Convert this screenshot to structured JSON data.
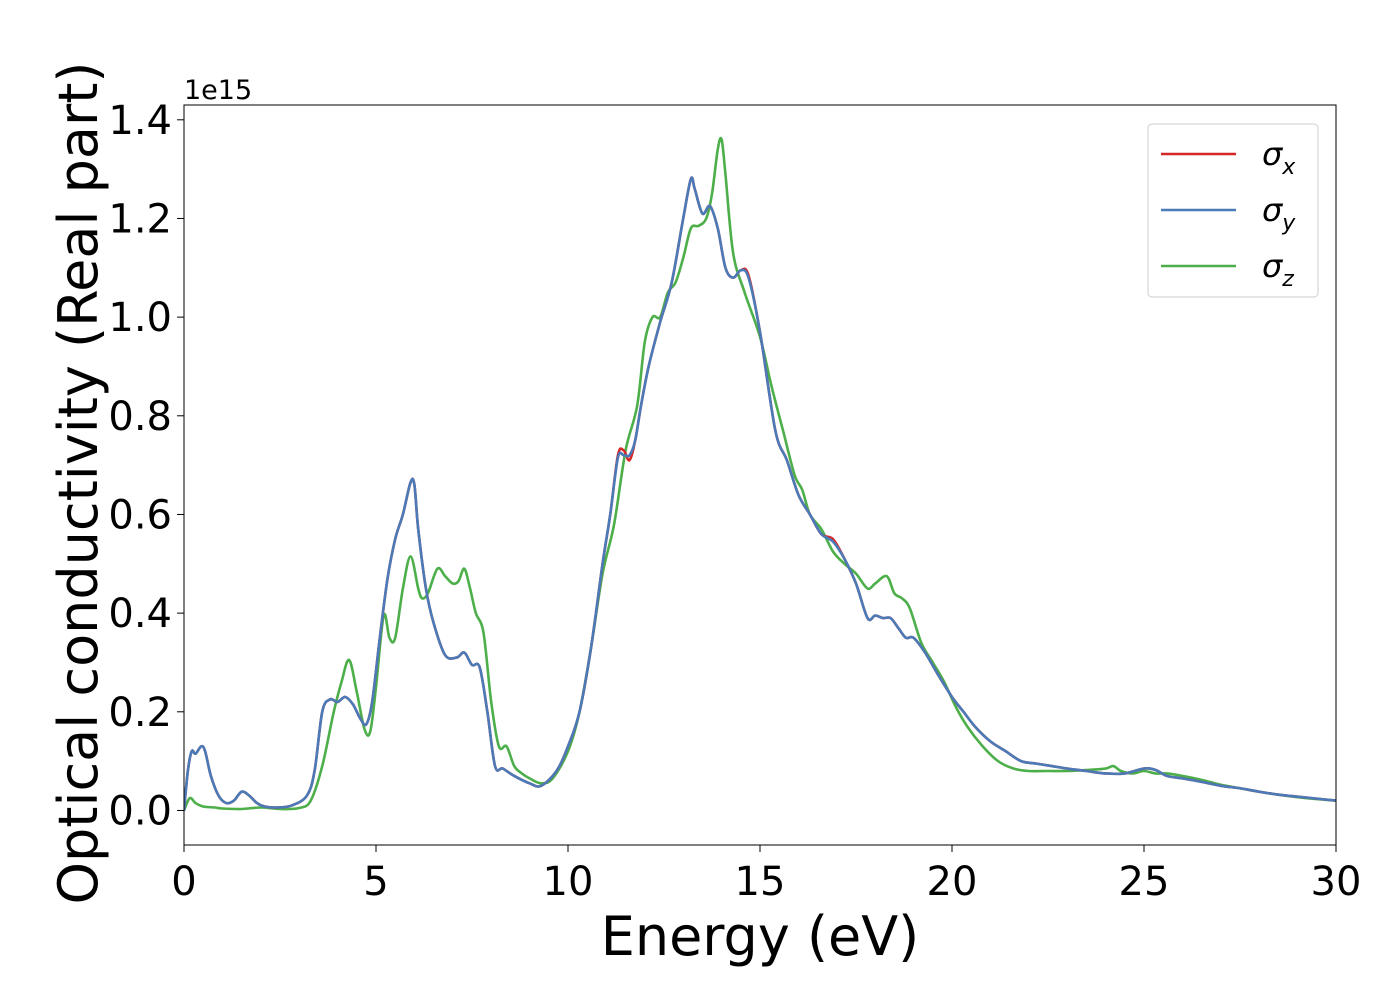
{
  "chart_data": {
    "type": "line",
    "xlabel": "Energy (eV)",
    "ylabel": "Optical conductivity (Real part)",
    "y_offset_label": "1e15",
    "xlim": [
      0,
      30
    ],
    "ylim": [
      -0.07,
      1.43
    ],
    "x_ticks": [
      0,
      5,
      10,
      15,
      20,
      25,
      30
    ],
    "x_tick_labels": [
      "0",
      "5",
      "10",
      "15",
      "20",
      "25",
      "30"
    ],
    "y_ticks": [
      0.0,
      0.2,
      0.4,
      0.6,
      0.8,
      1.0,
      1.2,
      1.4
    ],
    "y_tick_labels": [
      "0.0",
      "0.2",
      "0.4",
      "0.6",
      "0.8",
      "1.0",
      "1.2",
      "1.4"
    ],
    "grid": false,
    "legend_position": "top-right",
    "series": [
      {
        "name": "σx",
        "legend_symbol": "σ",
        "legend_subscript": "x",
        "color": "#d62728",
        "x": [
          0,
          0.1,
          0.2,
          0.3,
          0.45,
          0.55,
          0.7,
          0.9,
          1.1,
          1.3,
          1.5,
          1.7,
          1.9,
          2.1,
          2.4,
          2.8,
          3.2,
          3.4,
          3.6,
          3.8,
          4.0,
          4.2,
          4.4,
          4.6,
          4.75,
          4.9,
          5.1,
          5.3,
          5.5,
          5.7,
          5.9,
          6.0,
          6.1,
          6.3,
          6.5,
          6.8,
          7.1,
          7.3,
          7.5,
          7.7,
          7.9,
          8.1,
          8.3,
          8.6,
          9.0,
          9.3,
          9.7,
          10.0,
          10.3,
          10.6,
          10.9,
          11.1,
          11.3,
          11.45,
          11.6,
          11.75,
          11.9,
          12.1,
          12.4,
          12.7,
          13.0,
          13.2,
          13.3,
          13.5,
          13.7,
          13.9,
          14.1,
          14.3,
          14.5,
          14.7,
          15.0,
          15.4,
          15.7,
          16.0,
          16.3,
          16.6,
          16.9,
          17.2,
          17.5,
          17.8,
          18.0,
          18.2,
          18.4,
          18.6,
          18.8,
          19.0,
          19.3,
          19.6,
          20.0,
          20.3,
          20.6,
          21.0,
          21.4,
          21.8,
          22.2,
          22.6,
          23.0,
          23.5,
          24.0,
          24.5,
          25.0,
          25.3,
          25.6,
          26.0,
          26.5,
          27.0,
          27.5,
          28.0,
          28.5,
          29.0,
          29.5,
          30.0
        ],
        "values": [
          0.0,
          0.08,
          0.12,
          0.115,
          0.13,
          0.12,
          0.07,
          0.03,
          0.015,
          0.02,
          0.038,
          0.03,
          0.015,
          0.008,
          0.006,
          0.01,
          0.03,
          0.08,
          0.2,
          0.225,
          0.22,
          0.23,
          0.215,
          0.185,
          0.175,
          0.22,
          0.35,
          0.47,
          0.55,
          0.6,
          0.665,
          0.66,
          0.57,
          0.45,
          0.38,
          0.315,
          0.31,
          0.32,
          0.295,
          0.29,
          0.2,
          0.09,
          0.085,
          0.07,
          0.055,
          0.05,
          0.08,
          0.13,
          0.2,
          0.33,
          0.5,
          0.6,
          0.72,
          0.73,
          0.71,
          0.75,
          0.82,
          0.9,
          0.99,
          1.07,
          1.2,
          1.28,
          1.26,
          1.21,
          1.225,
          1.18,
          1.1,
          1.08,
          1.095,
          1.085,
          0.97,
          0.77,
          0.71,
          0.64,
          0.6,
          0.56,
          0.55,
          0.51,
          0.46,
          0.39,
          0.395,
          0.39,
          0.39,
          0.37,
          0.35,
          0.35,
          0.32,
          0.28,
          0.23,
          0.2,
          0.17,
          0.14,
          0.12,
          0.1,
          0.095,
          0.09,
          0.085,
          0.08,
          0.075,
          0.075,
          0.085,
          0.082,
          0.07,
          0.065,
          0.058,
          0.05,
          0.045,
          0.038,
          0.032,
          0.028,
          0.024,
          0.02
        ]
      },
      {
        "name": "σy",
        "legend_symbol": "σ",
        "legend_subscript": "y",
        "color": "#4a7ab7",
        "x": [
          0,
          0.1,
          0.2,
          0.3,
          0.45,
          0.55,
          0.7,
          0.9,
          1.1,
          1.3,
          1.5,
          1.7,
          1.9,
          2.1,
          2.4,
          2.8,
          3.2,
          3.4,
          3.6,
          3.8,
          4.0,
          4.2,
          4.4,
          4.6,
          4.75,
          4.9,
          5.1,
          5.3,
          5.5,
          5.7,
          5.9,
          6.0,
          6.1,
          6.3,
          6.5,
          6.8,
          7.1,
          7.3,
          7.5,
          7.7,
          7.9,
          8.1,
          8.3,
          8.6,
          9.0,
          9.3,
          9.7,
          10.0,
          10.3,
          10.6,
          10.9,
          11.1,
          11.3,
          11.45,
          11.6,
          11.75,
          11.9,
          12.1,
          12.4,
          12.7,
          13.0,
          13.2,
          13.3,
          13.5,
          13.7,
          13.9,
          14.1,
          14.3,
          14.5,
          14.7,
          15.0,
          15.4,
          15.7,
          16.0,
          16.3,
          16.6,
          16.9,
          17.2,
          17.5,
          17.8,
          18.0,
          18.2,
          18.4,
          18.6,
          18.8,
          19.0,
          19.3,
          19.6,
          20.0,
          20.3,
          20.6,
          21.0,
          21.4,
          21.8,
          22.2,
          22.6,
          23.0,
          23.5,
          24.0,
          24.5,
          25.0,
          25.3,
          25.6,
          26.0,
          26.5,
          27.0,
          27.5,
          28.0,
          28.5,
          29.0,
          29.5,
          30.0
        ],
        "values": [
          0.0,
          0.08,
          0.12,
          0.115,
          0.13,
          0.12,
          0.07,
          0.03,
          0.015,
          0.02,
          0.038,
          0.03,
          0.015,
          0.008,
          0.006,
          0.01,
          0.03,
          0.08,
          0.2,
          0.225,
          0.22,
          0.23,
          0.215,
          0.185,
          0.175,
          0.22,
          0.35,
          0.47,
          0.55,
          0.6,
          0.665,
          0.66,
          0.57,
          0.45,
          0.38,
          0.315,
          0.31,
          0.32,
          0.295,
          0.29,
          0.2,
          0.09,
          0.085,
          0.07,
          0.055,
          0.05,
          0.08,
          0.13,
          0.2,
          0.33,
          0.5,
          0.6,
          0.715,
          0.72,
          0.72,
          0.75,
          0.82,
          0.9,
          0.99,
          1.07,
          1.2,
          1.28,
          1.26,
          1.21,
          1.225,
          1.18,
          1.1,
          1.08,
          1.095,
          1.08,
          0.97,
          0.77,
          0.71,
          0.64,
          0.6,
          0.56,
          0.545,
          0.51,
          0.46,
          0.39,
          0.395,
          0.39,
          0.39,
          0.37,
          0.35,
          0.35,
          0.32,
          0.28,
          0.23,
          0.2,
          0.17,
          0.14,
          0.12,
          0.1,
          0.095,
          0.09,
          0.085,
          0.08,
          0.075,
          0.075,
          0.085,
          0.082,
          0.07,
          0.065,
          0.058,
          0.05,
          0.045,
          0.038,
          0.032,
          0.028,
          0.024,
          0.02
        ]
      },
      {
        "name": "σz",
        "legend_symbol": "σ",
        "legend_subscript": "z",
        "color": "#4daf4a",
        "x": [
          0,
          0.15,
          0.3,
          0.5,
          0.8,
          1.0,
          1.5,
          2.0,
          2.5,
          3.0,
          3.3,
          3.6,
          3.9,
          4.1,
          4.3,
          4.5,
          4.7,
          4.85,
          5.0,
          5.2,
          5.35,
          5.5,
          5.7,
          5.9,
          6.1,
          6.2,
          6.35,
          6.6,
          6.8,
          7.0,
          7.15,
          7.3,
          7.45,
          7.6,
          7.8,
          8.0,
          8.2,
          8.4,
          8.6,
          8.8,
          9.0,
          9.3,
          9.6,
          10.0,
          10.3,
          10.6,
          10.9,
          11.2,
          11.5,
          11.8,
          12.0,
          12.2,
          12.4,
          12.6,
          12.8,
          13.0,
          13.2,
          13.4,
          13.6,
          13.75,
          13.9,
          14.0,
          14.1,
          14.3,
          14.6,
          15.0,
          15.3,
          15.6,
          15.9,
          16.1,
          16.3,
          16.6,
          16.9,
          17.2,
          17.5,
          17.8,
          18.0,
          18.3,
          18.5,
          18.7,
          18.9,
          19.2,
          19.5,
          19.8,
          20.1,
          20.4,
          20.8,
          21.2,
          21.6,
          22.0,
          22.5,
          23.0,
          23.5,
          24.0,
          24.2,
          24.4,
          24.7,
          25.0,
          25.3,
          25.6,
          26.0,
          26.5,
          27.0,
          27.5,
          28.0,
          28.5,
          29.0,
          29.5,
          30.0
        ],
        "values": [
          0.0,
          0.025,
          0.015,
          0.008,
          0.006,
          0.004,
          0.003,
          0.006,
          0.003,
          0.005,
          0.02,
          0.09,
          0.2,
          0.26,
          0.305,
          0.24,
          0.165,
          0.16,
          0.25,
          0.395,
          0.35,
          0.35,
          0.45,
          0.515,
          0.45,
          0.43,
          0.44,
          0.49,
          0.475,
          0.46,
          0.465,
          0.49,
          0.45,
          0.4,
          0.36,
          0.22,
          0.13,
          0.13,
          0.09,
          0.075,
          0.065,
          0.055,
          0.065,
          0.12,
          0.2,
          0.33,
          0.48,
          0.58,
          0.73,
          0.82,
          0.95,
          1.0,
          1.0,
          1.05,
          1.07,
          1.12,
          1.18,
          1.185,
          1.2,
          1.25,
          1.34,
          1.36,
          1.29,
          1.13,
          1.05,
          0.96,
          0.86,
          0.77,
          0.68,
          0.65,
          0.6,
          0.57,
          0.525,
          0.5,
          0.48,
          0.45,
          0.46,
          0.475,
          0.44,
          0.43,
          0.41,
          0.34,
          0.3,
          0.26,
          0.21,
          0.17,
          0.13,
          0.1,
          0.085,
          0.08,
          0.08,
          0.08,
          0.082,
          0.085,
          0.09,
          0.08,
          0.075,
          0.08,
          0.075,
          0.075,
          0.07,
          0.062,
          0.052,
          0.045,
          0.038,
          0.032,
          0.027,
          0.023,
          0.02
        ]
      }
    ]
  }
}
